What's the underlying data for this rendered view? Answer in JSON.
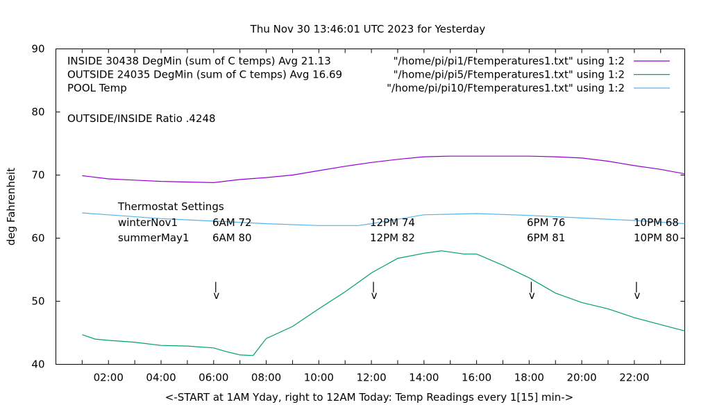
{
  "chart_data": {
    "type": "line",
    "title": "Thu Nov 30 13:46:01 UTC 2023 for Yesterday",
    "xlabel": "<-START at 1AM Yday, right to 12AM Today:  Temp Readings every 1[15] min->",
    "ylabel": "deg Fahrenheit",
    "xlim": [
      "00:00",
      "23:55"
    ],
    "ylim": [
      40,
      90
    ],
    "x_ticks": [
      "02:00",
      "04:00",
      "06:00",
      "08:00",
      "10:00",
      "12:00",
      "14:00",
      "16:00",
      "18:00",
      "20:00",
      "22:00"
    ],
    "y_ticks": [
      40,
      50,
      60,
      70,
      80,
      90
    ],
    "grid": false,
    "legend_placement": "top-right",
    "series": [
      {
        "name": "INSIDE 30438 DegMin (sum of C temps) Avg 21.13",
        "legend_source": "\"/home/pi/pi1/Ftemperatures1.txt\" using 1:2",
        "color": "#9400d3",
        "x": [
          "01:00",
          "02:00",
          "03:00",
          "04:00",
          "05:00",
          "06:00",
          "07:00",
          "08:00",
          "09:00",
          "10:00",
          "11:00",
          "12:00",
          "13:00",
          "14:00",
          "15:00",
          "16:00",
          "17:00",
          "18:00",
          "19:00",
          "20:00",
          "21:00",
          "22:00",
          "23:00",
          "23:55"
        ],
        "values": [
          69.9,
          69.4,
          69.2,
          69.0,
          68.9,
          68.8,
          69.3,
          69.6,
          70.0,
          70.7,
          71.4,
          72.0,
          72.5,
          72.9,
          73.0,
          73.0,
          73.0,
          73.0,
          72.9,
          72.7,
          72.2,
          71.5,
          70.9,
          70.2
        ]
      },
      {
        "name": "OUTSIDE 24035 DegMin (sum of C temps) Avg 16.69",
        "legend_source": "\"/home/pi/pi5/Ftemperatures1.txt\" using 1:2",
        "color": "#009e73",
        "x": [
          "01:00",
          "01:30",
          "02:00",
          "03:00",
          "04:00",
          "05:00",
          "06:00",
          "06:30",
          "07:00",
          "07:30",
          "08:00",
          "09:00",
          "10:00",
          "11:00",
          "12:00",
          "13:00",
          "14:00",
          "14:40",
          "15:30",
          "16:00",
          "17:00",
          "18:00",
          "19:00",
          "20:00",
          "21:00",
          "22:00",
          "23:00",
          "23:55"
        ],
        "values": [
          44.7,
          44.0,
          43.8,
          43.5,
          43.0,
          42.9,
          42.6,
          42.0,
          41.5,
          41.4,
          44.1,
          46.0,
          48.8,
          51.5,
          54.5,
          56.8,
          57.6,
          58.0,
          57.5,
          57.5,
          55.7,
          53.7,
          51.3,
          49.8,
          48.8,
          47.4,
          46.3,
          45.3
        ]
      },
      {
        "name": "POOL Temp",
        "legend_source": "\"/home/pi/pi10/Ftemperatures1.txt\" using 1:2",
        "color": "#56b4e9",
        "x": [
          "01:00",
          "02:00",
          "04:00",
          "06:00",
          "08:00",
          "10:00",
          "11:30",
          "12:00",
          "13:00",
          "14:00",
          "16:00",
          "18:00",
          "20:00",
          "22:00",
          "23:55"
        ],
        "values": [
          64.0,
          63.7,
          63.1,
          62.7,
          62.3,
          62.0,
          62.0,
          62.3,
          63.0,
          63.7,
          63.9,
          63.6,
          63.2,
          62.8,
          62.3
        ]
      }
    ],
    "annotations": {
      "ratio": "OUTSIDE/INSIDE Ratio .4248",
      "thermostat_title": "Thermostat Settings",
      "rows": [
        {
          "label": "winterNov1",
          "settings": [
            "6AM 72",
            "12PM 74",
            "6PM 76",
            "10PM 68"
          ]
        },
        {
          "label": "summerMay1",
          "settings": [
            "6AM 80",
            "12PM 82",
            "6PM 81",
            "10PM 80"
          ]
        }
      ],
      "marker_times": [
        "06:00",
        "12:00",
        "18:00",
        "22:00"
      ],
      "marker_glyphs": [
        "|",
        "v"
      ]
    }
  }
}
